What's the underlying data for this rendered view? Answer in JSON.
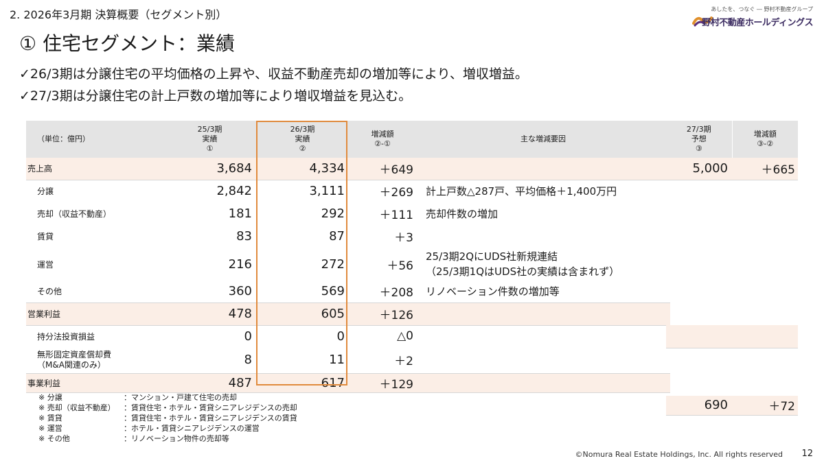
{
  "header": {
    "section": "2. 2026年3月期 決算概要（セグメント別）",
    "title": "① 住宅セグメント：業績",
    "logo_tagline": "あしたを、つなぐ ― 野村不動産グループ",
    "logo_name": "野村不動産ホールディングス"
  },
  "bullets": [
    "✓26/3期は分譲住宅の平均価格の上昇や、収益不動産売却の増加等により、増収増益。",
    "✓27/3期は分譲住宅の計上戸数の増加等により増収増益を見込む。"
  ],
  "table": {
    "headers": {
      "unit": "（単位：億円）",
      "c1": [
        "25/3期",
        "実績",
        "①"
      ],
      "c2": [
        "26/3期",
        "実績",
        "②"
      ],
      "c3": [
        "増減額",
        "②-①"
      ],
      "c4": "主な増減要因",
      "c5": [
        "27/3期",
        "予想",
        "③"
      ],
      "c6": [
        "増減額",
        "③-②"
      ]
    },
    "rows": [
      {
        "label": "売上高",
        "v1": "3,684",
        "v2": "4,334",
        "d": "＋649",
        "factor": "",
        "f": "5,000",
        "fd": "＋665"
      },
      {
        "label": "分譲",
        "v1": "2,842",
        "v2": "3,111",
        "d": "＋269",
        "factor": "計上戸数△287戸、平均価格＋1,400万円"
      },
      {
        "label": "売却（収益不動産）",
        "v1": "181",
        "v2": "292",
        "d": "＋111",
        "factor": "売却件数の増加"
      },
      {
        "label": "賃貸",
        "v1": "83",
        "v2": "87",
        "d": "＋3",
        "factor": ""
      },
      {
        "label": "運営",
        "v1": "216",
        "v2": "272",
        "d": "＋56",
        "factor": "25/3期2QにUDS社新規連結",
        "factor2": "（25/3期1QはUDS社の実績は含まれず）"
      },
      {
        "label": "その他",
        "v1": "360",
        "v2": "569",
        "d": "＋208",
        "factor": "リノベーション件数の増加等"
      },
      {
        "label": "営業利益",
        "v1": "478",
        "v2": "605",
        "d": "＋126",
        "factor": ""
      },
      {
        "label": "持分法投資損益",
        "v1": "0",
        "v2": "0",
        "d": "△0",
        "factor": ""
      },
      {
        "label": "無形固定資産償却費",
        "label2": "（M&A関連のみ）",
        "v1": "8",
        "v2": "11",
        "d": "＋2",
        "factor": ""
      },
      {
        "label": "事業利益",
        "v1": "487",
        "v2": "617",
        "d": "＋129",
        "factor": "",
        "f": "690",
        "fd": "＋72"
      }
    ]
  },
  "notes": [
    {
      "k": "※ 分譲",
      "v": "：マンション・戸建て住宅の売却"
    },
    {
      "k": "※ 売却（収益不動産）",
      "v": "：賃貸住宅・ホテル・賃貸シニアレジデンスの売却"
    },
    {
      "k": "※ 賃貸",
      "v": "：賃貸住宅・ホテル・賃貸シニアレジデンスの賃貸"
    },
    {
      "k": "※ 運営",
      "v": "：ホテル・賃貸シニアレジデンスの運営"
    },
    {
      "k": "※ その他",
      "v": "：リノベーション物件の売却等"
    }
  ],
  "footer": {
    "copyright": "©Nomura Real Estate Holdings, Inc. All rights reserved",
    "page": "12"
  },
  "colors": {
    "highlight_row": "#fbeee6",
    "header_bg": "#e4e4e4",
    "focus_border": "#e08a3c",
    "logo": "#3a2a60"
  }
}
